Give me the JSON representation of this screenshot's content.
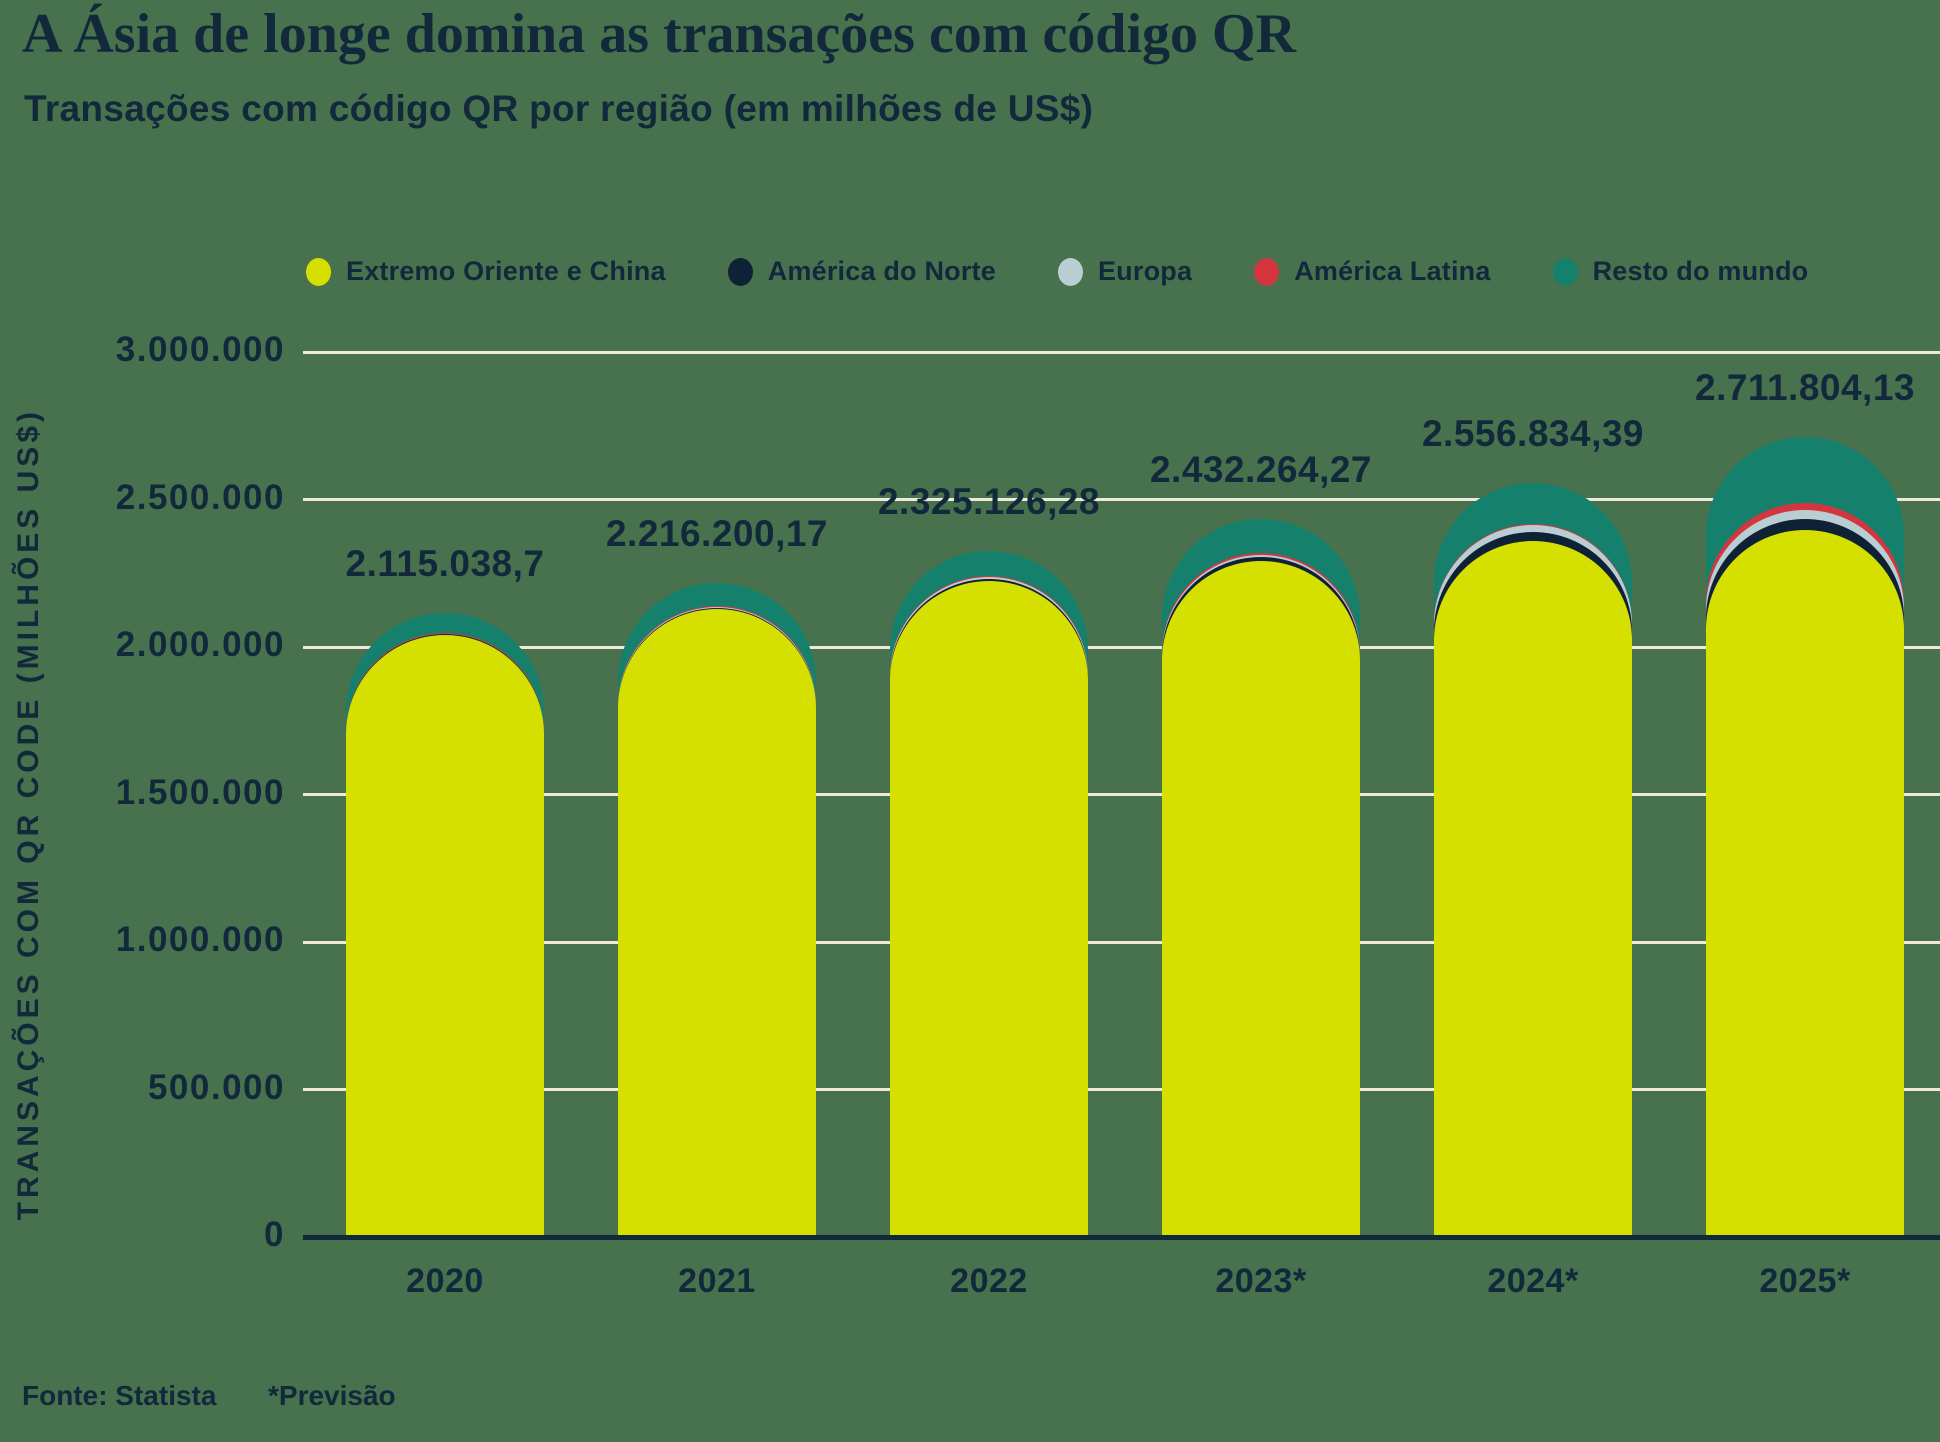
{
  "page": {
    "title": "A Ásia de longe domina as transações com código QR",
    "subtitle": "Transações com código QR por região (em milhões de US$)",
    "footer": {
      "source": "Fonte: Statista",
      "note": "*Previsão"
    }
  },
  "colors": {
    "background": "#48714E",
    "text": "#12293C",
    "gridline": "#EFE9D9",
    "axis": "#12293C",
    "far_east_china": "#D5E000",
    "north_america": "#0F2235",
    "europe": "#B8CED3",
    "latin_america": "#D4353F",
    "rest_of_world": "#15806C"
  },
  "chart_data": {
    "type": "bar",
    "stacked": true,
    "rounded_tops": true,
    "title": "A Ásia de longe domina as transações com código QR",
    "subtitle": "Transações com código QR por região (em milhões de US$)",
    "xlabel": "",
    "ylabel": "TRANSAÇÕES COM QR CODE (MILHÕES US$)",
    "ylim": [
      0,
      3000000
    ],
    "grid": true,
    "legend_position": "top",
    "categories": [
      "2020",
      "2021",
      "2022",
      "2023*",
      "2024*",
      "2025*"
    ],
    "yticks": [
      {
        "label": "3.000.000",
        "value": 3000000
      },
      {
        "label": "2.500.000",
        "value": 2500000
      },
      {
        "label": "2.000.000",
        "value": 2000000
      },
      {
        "label": "1.500.000",
        "value": 1500000
      },
      {
        "label": "1.000.000",
        "value": 1000000
      },
      {
        "label": "500.000",
        "value": 500000
      },
      {
        "label": "0",
        "value": 0
      }
    ],
    "series": [
      {
        "name": "Extremo Oriente e China",
        "color_key": "far_east_china",
        "values": [
          2040000,
          2130000,
          2225000,
          2290000,
          2360000,
          2395000
        ]
      },
      {
        "name": "América do Norte",
        "color_key": "north_america",
        "values": [
          2500,
          3500,
          6000,
          15000,
          29000,
          40000
        ]
      },
      {
        "name": "Europa",
        "color_key": "europe",
        "values": [
          2500,
          3000,
          5000,
          8000,
          24000,
          28000
        ]
      },
      {
        "name": "América Latina",
        "color_key": "latin_america",
        "values": [
          2000,
          2500,
          4000,
          6000,
          5000,
          26000
        ]
      },
      {
        "name": "Resto do mundo",
        "color_key": "rest_of_world",
        "values": [
          68038.7,
          77200.17,
          85126.28,
          113264.27,
          138834.39,
          222804.13
        ]
      }
    ],
    "series_values_estimated": true,
    "totals": {
      "values": [
        2115038.7,
        2216200.17,
        2325126.28,
        2432264.27,
        2556834.39,
        2711804.13
      ],
      "labels": [
        "2.115.038,7",
        "2.216.200,17",
        "2.325.126,28",
        "2.432.264,27",
        "2.556.834,39",
        "2.711.804,13"
      ]
    }
  }
}
